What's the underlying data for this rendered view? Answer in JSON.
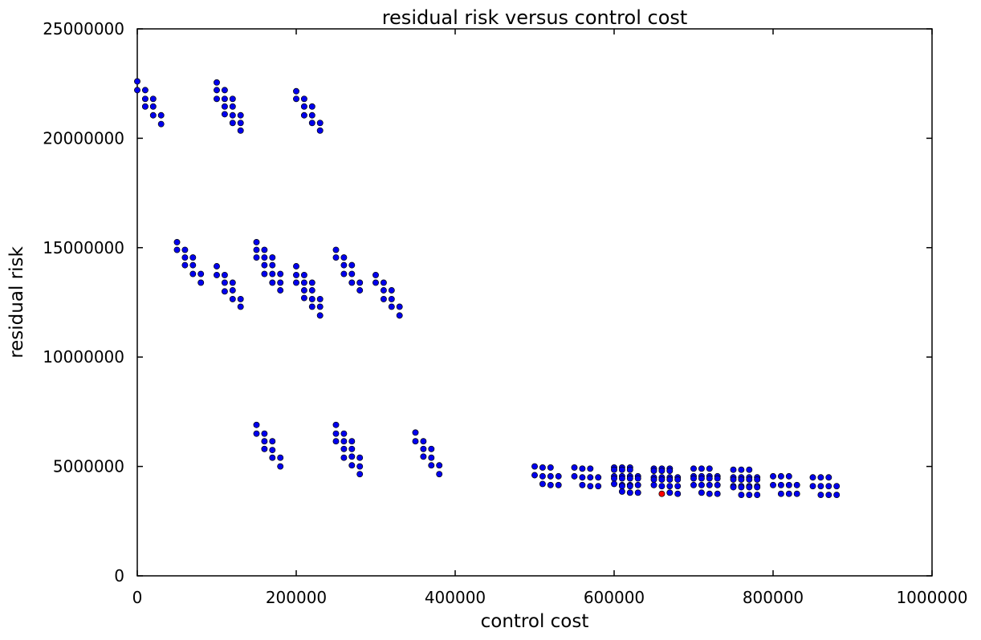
{
  "chart_data": {
    "type": "scatter",
    "title": "residual risk versus control cost",
    "xlabel": "control cost",
    "ylabel": "residual risk",
    "xlim": [
      0,
      1000000
    ],
    "ylim": [
      0,
      25000000
    ],
    "xticks": [
      0,
      200000,
      400000,
      600000,
      800000,
      1000000
    ],
    "yticks": [
      0,
      5000000,
      10000000,
      15000000,
      20000000,
      25000000
    ],
    "xtick_labels": [
      "0",
      "200000",
      "400000",
      "600000",
      "800000",
      "1000000"
    ],
    "ytick_labels": [
      "0",
      "5000000",
      "10000000",
      "15000000",
      "20000000",
      "25000000"
    ],
    "grid": false,
    "colors": {
      "default_point": "#0000ee",
      "highlight_point": "#ff0000",
      "point_edge": "#000000"
    },
    "series": [
      {
        "color": "#0000ee",
        "points": [
          [
            0,
            22600000
          ],
          [
            0,
            22200000
          ],
          [
            10000,
            22200000
          ],
          [
            10000,
            21800000
          ],
          [
            20000,
            21800000
          ],
          [
            10000,
            21450000
          ],
          [
            20000,
            21450000
          ],
          [
            20000,
            21050000
          ],
          [
            30000,
            21050000
          ],
          [
            30000,
            20650000
          ],
          [
            100000,
            22550000
          ],
          [
            100000,
            22200000
          ],
          [
            110000,
            22200000
          ],
          [
            100000,
            21800000
          ],
          [
            110000,
            21800000
          ],
          [
            120000,
            21800000
          ],
          [
            110000,
            21450000
          ],
          [
            120000,
            21450000
          ],
          [
            110000,
            21100000
          ],
          [
            120000,
            21050000
          ],
          [
            130000,
            21050000
          ],
          [
            120000,
            20700000
          ],
          [
            130000,
            20700000
          ],
          [
            130000,
            20350000
          ],
          [
            200000,
            22150000
          ],
          [
            200000,
            21800000
          ],
          [
            210000,
            21800000
          ],
          [
            210000,
            21450000
          ],
          [
            220000,
            21450000
          ],
          [
            210000,
            21050000
          ],
          [
            220000,
            21050000
          ],
          [
            220000,
            20700000
          ],
          [
            230000,
            20700000
          ],
          [
            230000,
            20350000
          ],
          [
            50000,
            15250000
          ],
          [
            50000,
            14900000
          ],
          [
            60000,
            14900000
          ],
          [
            60000,
            14550000
          ],
          [
            70000,
            14550000
          ],
          [
            60000,
            14200000
          ],
          [
            70000,
            14200000
          ],
          [
            70000,
            13800000
          ],
          [
            80000,
            13800000
          ],
          [
            80000,
            13400000
          ],
          [
            100000,
            14150000
          ],
          [
            100000,
            13750000
          ],
          [
            110000,
            13750000
          ],
          [
            110000,
            13400000
          ],
          [
            120000,
            13400000
          ],
          [
            110000,
            13000000
          ],
          [
            120000,
            13050000
          ],
          [
            120000,
            12650000
          ],
          [
            130000,
            12650000
          ],
          [
            130000,
            12300000
          ],
          [
            150000,
            15250000
          ],
          [
            150000,
            14900000
          ],
          [
            160000,
            14900000
          ],
          [
            150000,
            14550000
          ],
          [
            160000,
            14550000
          ],
          [
            170000,
            14550000
          ],
          [
            160000,
            14200000
          ],
          [
            170000,
            14200000
          ],
          [
            160000,
            13800000
          ],
          [
            170000,
            13800000
          ],
          [
            180000,
            13800000
          ],
          [
            170000,
            13400000
          ],
          [
            180000,
            13400000
          ],
          [
            180000,
            13050000
          ],
          [
            200000,
            14150000
          ],
          [
            200000,
            13750000
          ],
          [
            210000,
            13750000
          ],
          [
            200000,
            13400000
          ],
          [
            210000,
            13400000
          ],
          [
            220000,
            13400000
          ],
          [
            210000,
            13050000
          ],
          [
            220000,
            13050000
          ],
          [
            210000,
            12700000
          ],
          [
            220000,
            12650000
          ],
          [
            230000,
            12650000
          ],
          [
            220000,
            12300000
          ],
          [
            230000,
            12300000
          ],
          [
            230000,
            11900000
          ],
          [
            250000,
            14900000
          ],
          [
            250000,
            14550000
          ],
          [
            260000,
            14550000
          ],
          [
            260000,
            14200000
          ],
          [
            270000,
            14200000
          ],
          [
            260000,
            13800000
          ],
          [
            270000,
            13800000
          ],
          [
            270000,
            13400000
          ],
          [
            280000,
            13400000
          ],
          [
            280000,
            13050000
          ],
          [
            300000,
            13750000
          ],
          [
            300000,
            13400000
          ],
          [
            310000,
            13400000
          ],
          [
            310000,
            13050000
          ],
          [
            320000,
            13050000
          ],
          [
            310000,
            12650000
          ],
          [
            320000,
            12650000
          ],
          [
            320000,
            12300000
          ],
          [
            330000,
            12300000
          ],
          [
            330000,
            11900000
          ],
          [
            150000,
            6900000
          ],
          [
            150000,
            6500000
          ],
          [
            160000,
            6500000
          ],
          [
            160000,
            6150000
          ],
          [
            170000,
            6150000
          ],
          [
            160000,
            5800000
          ],
          [
            170000,
            5750000
          ],
          [
            170000,
            5400000
          ],
          [
            180000,
            5400000
          ],
          [
            180000,
            5000000
          ],
          [
            250000,
            6900000
          ],
          [
            250000,
            6500000
          ],
          [
            260000,
            6500000
          ],
          [
            250000,
            6150000
          ],
          [
            260000,
            6150000
          ],
          [
            270000,
            6150000
          ],
          [
            260000,
            5800000
          ],
          [
            270000,
            5800000
          ],
          [
            260000,
            5400000
          ],
          [
            270000,
            5450000
          ],
          [
            280000,
            5400000
          ],
          [
            270000,
            5050000
          ],
          [
            280000,
            5000000
          ],
          [
            280000,
            4650000
          ],
          [
            350000,
            6550000
          ],
          [
            350000,
            6150000
          ],
          [
            360000,
            6150000
          ],
          [
            360000,
            5800000
          ],
          [
            370000,
            5800000
          ],
          [
            360000,
            5450000
          ],
          [
            370000,
            5400000
          ],
          [
            370000,
            5050000
          ],
          [
            380000,
            5050000
          ],
          [
            380000,
            4650000
          ],
          [
            500000,
            5000000
          ],
          [
            510000,
            4950000
          ],
          [
            520000,
            4950000
          ],
          [
            500000,
            4600000
          ],
          [
            510000,
            4550000
          ],
          [
            520000,
            4550000
          ],
          [
            530000,
            4550000
          ],
          [
            510000,
            4200000
          ],
          [
            520000,
            4150000
          ],
          [
            530000,
            4150000
          ],
          [
            550000,
            4950000
          ],
          [
            560000,
            4900000
          ],
          [
            570000,
            4900000
          ],
          [
            550000,
            4550000
          ],
          [
            560000,
            4500000
          ],
          [
            570000,
            4500000
          ],
          [
            580000,
            4500000
          ],
          [
            560000,
            4150000
          ],
          [
            570000,
            4100000
          ],
          [
            580000,
            4100000
          ],
          [
            600000,
            4950000
          ],
          [
            610000,
            4950000
          ],
          [
            620000,
            4950000
          ],
          [
            600000,
            4850000
          ],
          [
            610000,
            4850000
          ],
          [
            620000,
            4850000
          ],
          [
            600000,
            4550000
          ],
          [
            610000,
            4550000
          ],
          [
            620000,
            4550000
          ],
          [
            630000,
            4550000
          ],
          [
            600000,
            4450000
          ],
          [
            610000,
            4450000
          ],
          [
            620000,
            4450000
          ],
          [
            630000,
            4450000
          ],
          [
            600000,
            4200000
          ],
          [
            610000,
            4150000
          ],
          [
            620000,
            4150000
          ],
          [
            630000,
            4150000
          ],
          [
            610000,
            4100000
          ],
          [
            620000,
            4100000
          ],
          [
            610000,
            3850000
          ],
          [
            620000,
            3800000
          ],
          [
            630000,
            3800000
          ],
          [
            650000,
            4900000
          ],
          [
            660000,
            4900000
          ],
          [
            670000,
            4900000
          ],
          [
            650000,
            4800000
          ],
          [
            660000,
            4800000
          ],
          [
            670000,
            4800000
          ],
          [
            650000,
            4500000
          ],
          [
            660000,
            4500000
          ],
          [
            670000,
            4500000
          ],
          [
            680000,
            4500000
          ],
          [
            650000,
            4400000
          ],
          [
            660000,
            4400000
          ],
          [
            670000,
            4400000
          ],
          [
            680000,
            4400000
          ],
          [
            650000,
            4150000
          ],
          [
            660000,
            4100000
          ],
          [
            670000,
            4100000
          ],
          [
            680000,
            4100000
          ],
          [
            670000,
            3800000
          ],
          [
            680000,
            3750000
          ],
          [
            700000,
            4900000
          ],
          [
            710000,
            4900000
          ],
          [
            720000,
            4900000
          ],
          [
            700000,
            4550000
          ],
          [
            710000,
            4550000
          ],
          [
            720000,
            4550000
          ],
          [
            730000,
            4550000
          ],
          [
            700000,
            4450000
          ],
          [
            710000,
            4450000
          ],
          [
            720000,
            4450000
          ],
          [
            730000,
            4450000
          ],
          [
            700000,
            4150000
          ],
          [
            710000,
            4150000
          ],
          [
            720000,
            4150000
          ],
          [
            730000,
            4150000
          ],
          [
            710000,
            3800000
          ],
          [
            720000,
            3750000
          ],
          [
            730000,
            3750000
          ],
          [
            750000,
            4850000
          ],
          [
            760000,
            4850000
          ],
          [
            770000,
            4850000
          ],
          [
            750000,
            4500000
          ],
          [
            760000,
            4500000
          ],
          [
            770000,
            4500000
          ],
          [
            780000,
            4500000
          ],
          [
            750000,
            4400000
          ],
          [
            760000,
            4400000
          ],
          [
            770000,
            4400000
          ],
          [
            780000,
            4400000
          ],
          [
            750000,
            4100000
          ],
          [
            760000,
            4100000
          ],
          [
            770000,
            4100000
          ],
          [
            780000,
            4100000
          ],
          [
            750000,
            4050000
          ],
          [
            760000,
            4050000
          ],
          [
            770000,
            4050000
          ],
          [
            780000,
            4050000
          ],
          [
            760000,
            3700000
          ],
          [
            770000,
            3700000
          ],
          [
            780000,
            3700000
          ],
          [
            800000,
            4550000
          ],
          [
            810000,
            4550000
          ],
          [
            820000,
            4550000
          ],
          [
            800000,
            4150000
          ],
          [
            810000,
            4150000
          ],
          [
            820000,
            4150000
          ],
          [
            830000,
            4150000
          ],
          [
            810000,
            3750000
          ],
          [
            820000,
            3750000
          ],
          [
            830000,
            3750000
          ],
          [
            850000,
            4500000
          ],
          [
            860000,
            4500000
          ],
          [
            870000,
            4500000
          ],
          [
            850000,
            4100000
          ],
          [
            860000,
            4100000
          ],
          [
            870000,
            4100000
          ],
          [
            880000,
            4100000
          ],
          [
            860000,
            3700000
          ],
          [
            870000,
            3700000
          ],
          [
            880000,
            3700000
          ]
        ]
      },
      {
        "color": "#ff0000",
        "points": [
          [
            660000,
            3750000
          ]
        ]
      }
    ]
  }
}
